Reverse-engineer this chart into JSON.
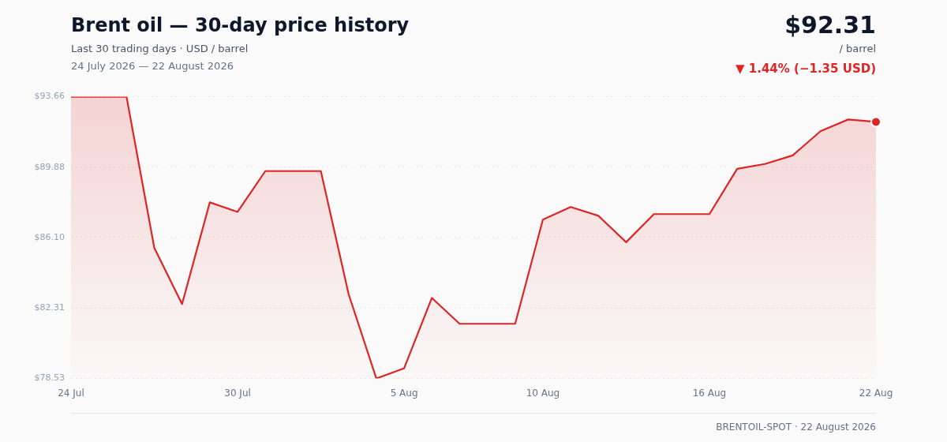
{
  "chart_data": {
    "type": "area",
    "title": "Brent oil — 30-day price history",
    "subtitle": "Last 30 trading days · USD / barrel",
    "annotations": [
      "$92.31",
      "/ barrel",
      "▼ 1.44% (−1.35 USD)",
      "24 July 2026 — 22 August 2026",
      "BRENTOIL-SPOT · 22 August 2026"
    ],
    "categories": [
      "24 Jul",
      null,
      null,
      null,
      null,
      null,
      "30 Jul",
      null,
      null,
      null,
      null,
      null,
      "5 Aug",
      null,
      null,
      null,
      null,
      "10 Aug",
      null,
      null,
      null,
      null,
      null,
      "16 Aug",
      null,
      null,
      null,
      null,
      null,
      "22 Aug"
    ],
    "series": [
      {
        "color": "#dc2626",
        "marker": "none",
        "values": [
          93.66,
          93.66,
          93.66,
          85.55,
          82.53,
          87.99,
          87.48,
          89.67,
          89.67,
          89.67,
          83.07,
          78.53,
          79.08,
          82.86,
          81.47,
          81.47,
          81.47,
          87.06,
          87.74,
          87.27,
          85.85,
          87.36,
          87.36,
          87.36,
          89.79,
          90.05,
          90.51,
          91.81,
          92.44,
          92.31
        ]
      },
      {
        "type": "scatter",
        "color": "#dc2626",
        "marker": "circle",
        "x": [
          "22 Aug"
        ],
        "values": [
          92.31
        ]
      }
    ],
    "ylim": [
      78.53,
      93.66
    ],
    "yticks": [
      {
        "value": 78.53,
        "label": "$78.53"
      },
      {
        "value": 82.31,
        "label": "$82.31"
      },
      {
        "value": 86.1,
        "label": "$86.10"
      },
      {
        "value": 89.88,
        "label": "$89.88"
      },
      {
        "value": 93.66,
        "label": "$93.66"
      }
    ],
    "grid": "y",
    "legend": false,
    "line_style": "solid"
  }
}
